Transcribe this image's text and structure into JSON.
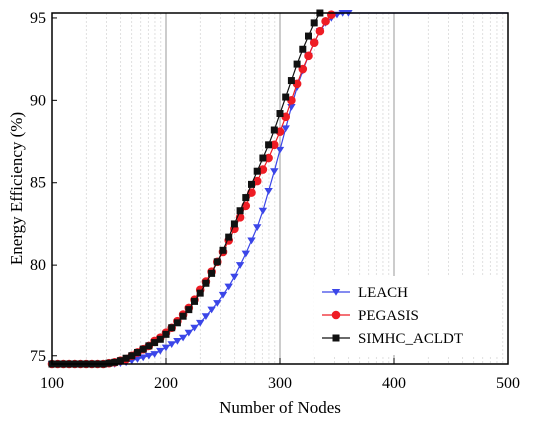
{
  "chart_data": {
    "type": "line",
    "title": "",
    "xlabel": "Number of Nodes",
    "ylabel": "Energy Efficiency (%)",
    "xlim": [
      100,
      500
    ],
    "ylim": [
      74,
      95.3
    ],
    "x_ticks": [
      100,
      200,
      300,
      400,
      500
    ],
    "x_tick_labels": [
      "100",
      "200",
      "300",
      "400",
      "500"
    ],
    "y_ticks": [
      80,
      85,
      90,
      95
    ],
    "y_tick_labels": [
      "80",
      "85",
      "90",
      "95"
    ],
    "y_extra_tick_labels": [
      {
        "value": 74.5,
        "label": "75"
      }
    ],
    "grid": "vertical",
    "legend_position": "bottom-right",
    "series": [
      {
        "name": "LEACH",
        "color": "#3b46e8",
        "marker": "triangle-down",
        "x": [
          100,
          105,
          110,
          115,
          120,
          125,
          130,
          135,
          140,
          145,
          150,
          155,
          160,
          165,
          170,
          175,
          180,
          185,
          190,
          195,
          200,
          205,
          210,
          215,
          220,
          225,
          230,
          235,
          240,
          245,
          250,
          255,
          260,
          265,
          270,
          275,
          280,
          285,
          290,
          295,
          300,
          305,
          310,
          315,
          320,
          325,
          330,
          335,
          340,
          345,
          350,
          355,
          360,
          370,
          380,
          390,
          400,
          410,
          420,
          430,
          440,
          450,
          460,
          470,
          480,
          490,
          500
        ],
        "y": [
          74.0,
          74.0,
          74.0,
          74.0,
          74.0,
          74.0,
          74.0,
          74.0,
          74.0,
          74.0,
          74.0,
          74.0,
          74.05,
          74.1,
          74.2,
          74.3,
          74.4,
          74.5,
          74.6,
          74.8,
          75.0,
          75.2,
          75.4,
          75.6,
          75.9,
          76.2,
          76.5,
          76.9,
          77.3,
          77.7,
          78.2,
          78.7,
          79.3,
          80.0,
          80.7,
          81.5,
          82.3,
          83.3,
          84.5,
          85.7,
          87.0,
          88.3,
          89.6,
          90.8,
          91.8,
          92.7,
          93.5,
          94.2,
          94.7,
          95.0,
          95.2,
          95.3,
          95.3,
          95.3,
          95.3,
          95.3,
          95.3,
          95.3,
          95.3,
          95.3,
          95.3,
          95.3,
          95.3,
          95.3,
          95.3,
          95.3,
          95.3
        ]
      },
      {
        "name": "PEGASIS",
        "color": "#ee1c24",
        "marker": "circle",
        "x": [
          100,
          105,
          110,
          115,
          120,
          125,
          130,
          135,
          140,
          145,
          150,
          155,
          160,
          165,
          170,
          175,
          180,
          185,
          190,
          195,
          200,
          205,
          210,
          215,
          220,
          225,
          230,
          235,
          240,
          245,
          250,
          255,
          260,
          265,
          270,
          275,
          280,
          285,
          290,
          295,
          300,
          305,
          310,
          315,
          320,
          325,
          330,
          335,
          340,
          345
        ],
        "y": [
          74.0,
          74.0,
          74.0,
          74.0,
          74.0,
          74.0,
          74.0,
          74.0,
          74.0,
          74.0,
          74.05,
          74.1,
          74.2,
          74.3,
          74.5,
          74.7,
          74.9,
          75.1,
          75.4,
          75.6,
          75.9,
          76.2,
          76.6,
          77.0,
          77.4,
          77.9,
          78.5,
          79.0,
          79.6,
          80.2,
          80.8,
          81.5,
          82.2,
          82.9,
          83.6,
          84.4,
          85.1,
          85.8,
          86.5,
          87.3,
          88.1,
          89.0,
          90.0,
          91.0,
          91.9,
          92.7,
          93.5,
          94.2,
          94.8,
          95.2
        ]
      },
      {
        "name": "SIMHC_ACLDT",
        "color": "#111111",
        "marker": "square",
        "x": [
          100,
          105,
          110,
          115,
          120,
          125,
          130,
          135,
          140,
          145,
          150,
          155,
          160,
          165,
          170,
          175,
          180,
          185,
          190,
          195,
          200,
          205,
          210,
          215,
          220,
          225,
          230,
          235,
          240,
          245,
          250,
          255,
          260,
          265,
          270,
          275,
          280,
          285,
          290,
          295,
          300,
          305,
          310,
          315,
          320,
          325,
          330,
          335
        ],
        "y": [
          74.0,
          74.0,
          74.0,
          74.0,
          74.0,
          74.0,
          74.0,
          74.0,
          74.0,
          74.0,
          74.05,
          74.1,
          74.2,
          74.35,
          74.5,
          74.7,
          74.9,
          75.1,
          75.3,
          75.5,
          75.8,
          76.2,
          76.5,
          76.9,
          77.3,
          77.8,
          78.3,
          78.9,
          79.5,
          80.2,
          80.9,
          81.7,
          82.5,
          83.3,
          84.1,
          84.9,
          85.7,
          86.5,
          87.3,
          88.2,
          89.2,
          90.2,
          91.2,
          92.2,
          93.1,
          93.9,
          94.7,
          95.3
        ]
      }
    ]
  }
}
